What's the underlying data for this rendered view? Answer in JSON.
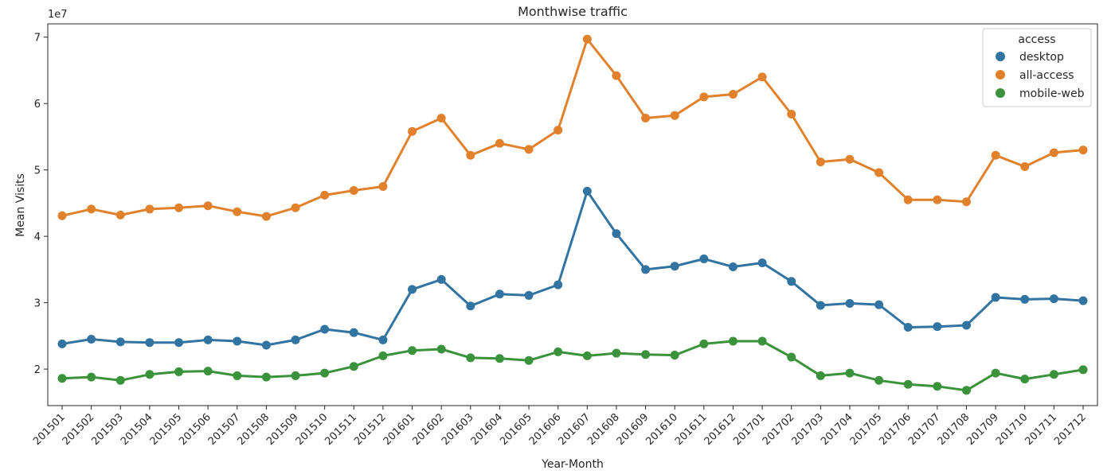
{
  "chart_data": {
    "type": "line",
    "title": "Monthwise traffic",
    "xlabel": "Year-Month",
    "ylabel": "Mean Visits",
    "y_multiplier": "1e7",
    "ylim": [
      1.45,
      7.2
    ],
    "yticks": [
      2,
      3,
      4,
      5,
      6,
      7
    ],
    "grid": false,
    "legend": {
      "title": "access",
      "placement": "top-right"
    },
    "categories": [
      "201501",
      "201502",
      "201503",
      "201504",
      "201505",
      "201506",
      "201507",
      "201508",
      "201509",
      "201510",
      "201511",
      "201512",
      "201601",
      "201602",
      "201603",
      "201604",
      "201605",
      "201606",
      "201607",
      "201608",
      "201609",
      "201610",
      "201611",
      "201612",
      "201701",
      "201702",
      "201703",
      "201704",
      "201705",
      "201706",
      "201707",
      "201708",
      "201709",
      "201710",
      "201711",
      "201712"
    ],
    "series": [
      {
        "name": "desktop",
        "color": "#3274a1",
        "values": [
          2.38,
          2.45,
          2.41,
          2.4,
          2.4,
          2.44,
          2.42,
          2.36,
          2.44,
          2.6,
          2.55,
          2.44,
          3.2,
          3.35,
          2.95,
          3.13,
          3.11,
          3.27,
          4.68,
          4.04,
          3.5,
          3.55,
          3.66,
          3.54,
          3.6,
          3.32,
          2.96,
          2.99,
          2.97,
          2.63,
          2.64,
          2.66,
          3.08,
          3.05,
          3.06,
          3.03
        ]
      },
      {
        "name": "all-access",
        "color": "#e1812c",
        "values": [
          4.31,
          4.41,
          4.32,
          4.41,
          4.43,
          4.46,
          4.37,
          4.3,
          4.43,
          4.62,
          4.69,
          4.75,
          5.58,
          5.78,
          5.22,
          5.4,
          5.31,
          5.6,
          6.97,
          6.42,
          5.78,
          5.82,
          6.1,
          6.14,
          6.4,
          5.84,
          5.12,
          5.16,
          4.96,
          4.55,
          4.55,
          4.52,
          5.22,
          5.05,
          5.26,
          5.3
        ]
      },
      {
        "name": "mobile-web",
        "color": "#3a923a",
        "values": [
          1.86,
          1.88,
          1.83,
          1.92,
          1.96,
          1.97,
          1.9,
          1.88,
          1.9,
          1.94,
          2.04,
          2.2,
          2.28,
          2.3,
          2.17,
          2.16,
          2.13,
          2.26,
          2.2,
          2.24,
          2.22,
          2.21,
          2.38,
          2.42,
          2.42,
          2.18,
          1.9,
          1.94,
          1.83,
          1.77,
          1.74,
          1.68,
          1.94,
          1.85,
          1.92,
          1.99
        ]
      }
    ]
  }
}
